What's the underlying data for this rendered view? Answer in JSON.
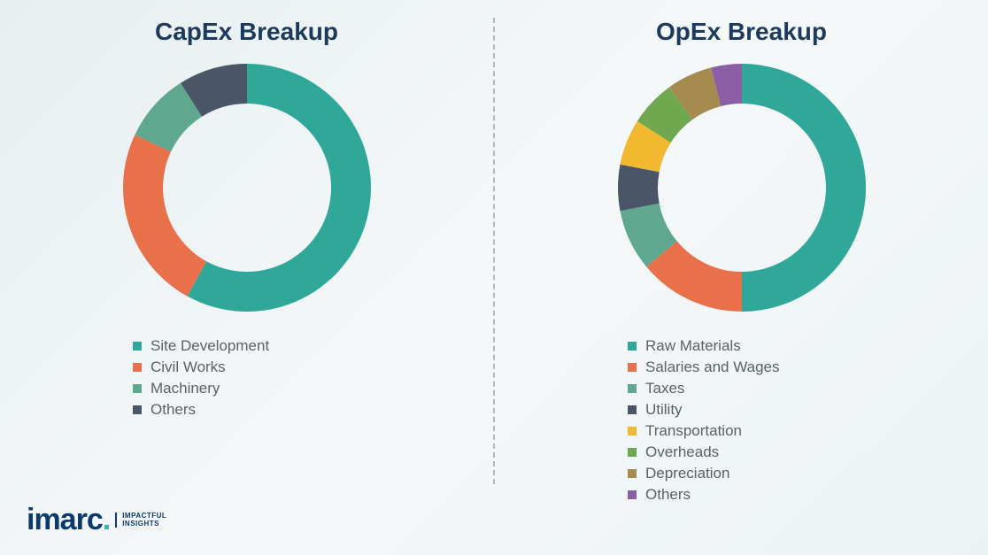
{
  "background_color": "#f5f7f8",
  "divider_color": "#b0b8bc",
  "title_color": "#1c3a5b",
  "legend_text_color": "#5a6268",
  "donut": {
    "outer_radius": 140,
    "inner_radius": 95,
    "gap_deg": 0
  },
  "capex": {
    "title": "CapEx Breakup",
    "type": "donut",
    "slices": [
      {
        "label": "Site Development",
        "value": 58,
        "color": "#2fa89a"
      },
      {
        "label": "Civil Works",
        "value": 24,
        "color": "#e8714c"
      },
      {
        "label": "Machinery",
        "value": 9,
        "color": "#5fa88f"
      },
      {
        "label": "Others",
        "value": 9,
        "color": "#4a5568"
      }
    ]
  },
  "opex": {
    "title": "OpEx Breakup",
    "type": "donut",
    "slices": [
      {
        "label": "Raw Materials",
        "value": 50,
        "color": "#2fa89a"
      },
      {
        "label": "Salaries and Wages",
        "value": 14,
        "color": "#e8714c"
      },
      {
        "label": "Taxes",
        "value": 8,
        "color": "#5fa88f"
      },
      {
        "label": "Utility",
        "value": 6,
        "color": "#4a5568"
      },
      {
        "label": "Transportation",
        "value": 6,
        "color": "#f2b82f"
      },
      {
        "label": "Overheads",
        "value": 6,
        "color": "#6fa84f"
      },
      {
        "label": "Depreciation",
        "value": 6,
        "color": "#a58b4f"
      },
      {
        "label": "Others",
        "value": 4,
        "color": "#8a5fa8"
      }
    ]
  },
  "logo": {
    "text": "imarc",
    "tag_line1": "IMPACTFUL",
    "tag_line2": "INSIGHTS",
    "main_color": "#0b3a6b",
    "dot_color": "#2fb6a9"
  }
}
